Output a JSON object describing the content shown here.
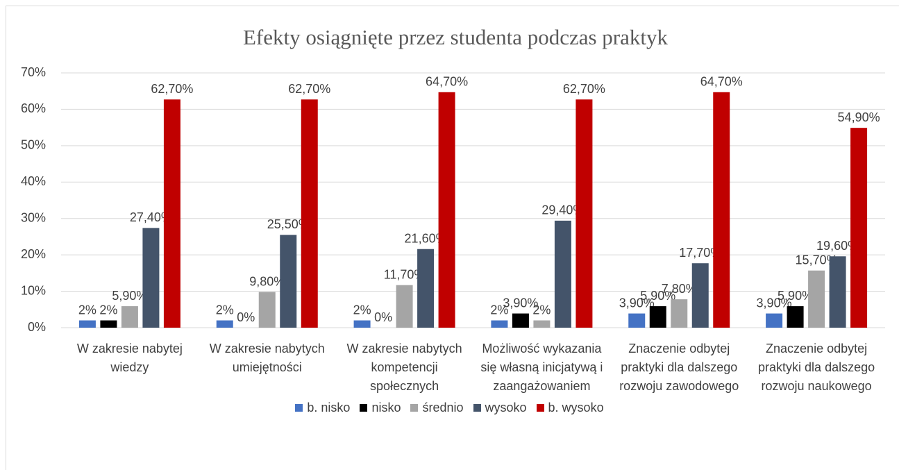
{
  "chart_data": {
    "type": "bar",
    "title": "Efekty osiągnięte przez studenta podczas praktyk",
    "categories": [
      "W zakresie nabytej wiedzy",
      "W zakresie nabytych umiejętności",
      "W zakresie nabytych kompetencji społecznych",
      "Możliwość wykazania się własną inicjatywą i zaangażowaniem",
      "Znaczenie odbytej praktyki dla dalszego rozwoju zawodowego",
      "Znaczenie odbytej praktyki dla dalszego rozwoju naukowego"
    ],
    "series": [
      {
        "name": "b. nisko",
        "color": "#4472c4",
        "values": [
          2,
          2,
          2,
          2,
          3.9,
          3.9
        ],
        "value_labels": [
          "2%",
          "2%",
          "2%",
          "2%",
          "3,90%",
          "3,90%"
        ]
      },
      {
        "name": "nisko",
        "color": "#000000",
        "values": [
          2,
          0,
          0,
          3.9,
          5.9,
          5.9
        ],
        "value_labels": [
          "2%",
          "0%",
          "0%",
          "3,90%",
          "5,90%",
          "5,90%"
        ]
      },
      {
        "name": "średnio",
        "color": "#a5a5a5",
        "values": [
          5.9,
          9.8,
          11.7,
          2,
          7.8,
          15.7
        ],
        "value_labels": [
          "5,90%",
          "9,80%",
          "11,70%",
          "2%",
          "7,80%",
          "15,70%"
        ]
      },
      {
        "name": "wysoko",
        "color": "#44546a",
        "values": [
          27.4,
          25.5,
          21.6,
          29.4,
          17.7,
          19.6
        ],
        "value_labels": [
          "27,40%",
          "25,50%",
          "21,60%",
          "29,40%",
          "17,70%",
          "19,60%"
        ]
      },
      {
        "name": "b. wysoko",
        "color": "#c00000",
        "values": [
          62.7,
          62.7,
          64.7,
          62.7,
          64.7,
          54.9
        ],
        "value_labels": [
          "62,70%",
          "62,70%",
          "64,70%",
          "62,70%",
          "64,70%",
          "54,90%"
        ]
      }
    ],
    "ylim": [
      0,
      70
    ],
    "yticks": [
      {
        "value": 0,
        "label": "0%"
      },
      {
        "value": 10,
        "label": "10%"
      },
      {
        "value": 20,
        "label": "20%"
      },
      {
        "value": 30,
        "label": "30%"
      },
      {
        "value": 40,
        "label": "40%"
      },
      {
        "value": 50,
        "label": "50%"
      },
      {
        "value": 60,
        "label": "60%"
      },
      {
        "value": 70,
        "label": "70%"
      }
    ],
    "grid": true,
    "legend": "bottom"
  }
}
